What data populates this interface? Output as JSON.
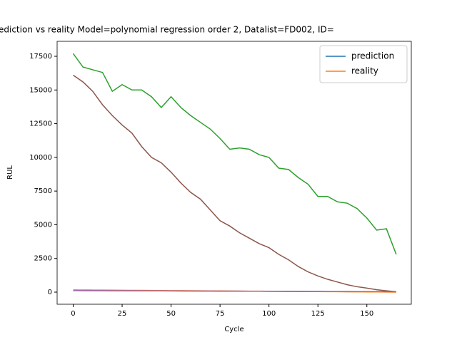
{
  "chart_data": {
    "type": "line",
    "title": "ediction vs reality Model=polynomial regression order 2, Datalist=FD002, ID=",
    "x_label": "Cycle",
    "y_label": "RUL",
    "x": [
      0,
      5,
      10,
      15,
      20,
      25,
      30,
      35,
      40,
      45,
      50,
      55,
      60,
      65,
      70,
      75,
      80,
      85,
      90,
      95,
      100,
      105,
      110,
      115,
      120,
      125,
      130,
      135,
      140,
      145,
      150,
      155,
      160,
      165
    ],
    "series": [
      {
        "name": "prediction",
        "color": "#1f77b4",
        "values": [
          120,
          117,
          114,
          111,
          108,
          105,
          102,
          99,
          96,
          93,
          90,
          87,
          84,
          81,
          78,
          75,
          72,
          69,
          66,
          63,
          60,
          57,
          54,
          51,
          48,
          45,
          42,
          39,
          36,
          33,
          30,
          27,
          24,
          21
        ]
      },
      {
        "name": "reality",
        "color": "#ff7f0e",
        "values": [
          165,
          160,
          155,
          150,
          145,
          140,
          135,
          130,
          125,
          120,
          115,
          110,
          105,
          100,
          95,
          90,
          85,
          80,
          75,
          70,
          65,
          60,
          55,
          50,
          45,
          40,
          35,
          30,
          25,
          20,
          15,
          10,
          5,
          0
        ]
      },
      {
        "color": "#2ca02c",
        "values": [
          17700,
          16700,
          16500,
          16300,
          14900,
          15400,
          15000,
          15000,
          14500,
          13700,
          14500,
          13700,
          13100,
          12600,
          12100,
          11400,
          10600,
          10700,
          10600,
          10200,
          10000,
          9200,
          9100,
          8500,
          8000,
          7100,
          7100,
          6700,
          6600,
          6200,
          5500,
          4600,
          4700,
          2800
        ]
      },
      {
        "color": "#8c564b",
        "values": [
          16100,
          15600,
          14900,
          13900,
          13100,
          12400,
          11800,
          10800,
          10000,
          9600,
          8900,
          8100,
          7400,
          6900,
          6100,
          5300,
          4900,
          4400,
          4000,
          3600,
          3300,
          2800,
          2400,
          1900,
          1500,
          1200,
          950,
          750,
          550,
          400,
          300,
          180,
          100,
          30
        ]
      },
      {
        "color": "#9467bd",
        "values": [
          110,
          108,
          106,
          104,
          102,
          100,
          98,
          95,
          92,
          90,
          88,
          85,
          82,
          80,
          77,
          75,
          72,
          70,
          68,
          65,
          62,
          60,
          58,
          55,
          52,
          50,
          48,
          46,
          44,
          42,
          40,
          38,
          36,
          34
        ]
      }
    ],
    "xlim": [
      -8.2,
      172.7
    ],
    "ylim": [
      -899,
      18611
    ],
    "xticks": [
      0,
      25,
      50,
      75,
      100,
      125,
      150
    ],
    "yticks": [
      0,
      2500,
      5000,
      7500,
      10000,
      12500,
      15000,
      17500
    ],
    "legend": "upper right"
  }
}
